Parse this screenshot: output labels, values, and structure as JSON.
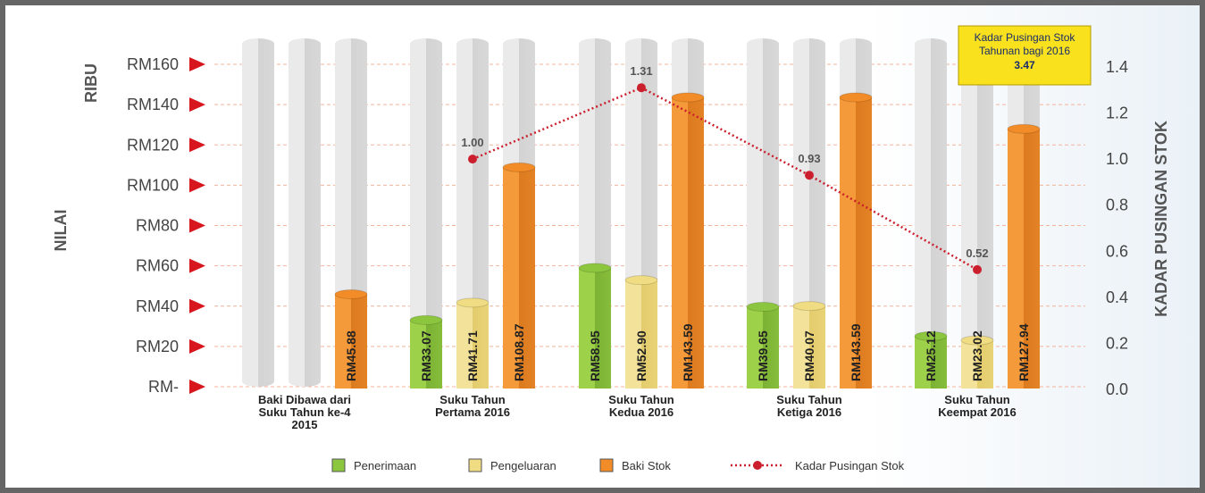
{
  "chart_data": {
    "type": "bar",
    "title": "",
    "categories": [
      [
        "Baki Dibawa dari",
        "Suku Tahun ke-4",
        "2015"
      ],
      [
        "Suku Tahun",
        "Pertama 2016"
      ],
      [
        "Suku Tahun",
        "Kedua 2016"
      ],
      [
        "Suku Tahun",
        "Ketiga 2016"
      ],
      [
        "Suku Tahun",
        "Keempat 2016"
      ]
    ],
    "ylabel": "NILAI",
    "yunit": "RIBU",
    "ylabel_right": "KADAR PUSINGAN STOK",
    "ylim": [
      0,
      160
    ],
    "yticks": [
      0,
      20,
      40,
      60,
      80,
      100,
      120,
      140,
      160
    ],
    "ytick_labels": [
      "RM-",
      "RM20",
      "RM40",
      "RM60",
      "RM80",
      "RM100",
      "RM120",
      "RM140",
      "RM160"
    ],
    "ylim_right": [
      0,
      1.4
    ],
    "yticks_right": [
      "0.0",
      "0.2",
      "0.4",
      "0.6",
      "0.8",
      "1.0",
      "1.2",
      "1.4"
    ],
    "series": [
      {
        "name": "Penerimaan",
        "color": "#8cc63f",
        "values": [
          null,
          33.07,
          58.95,
          39.65,
          25.12
        ],
        "labels": [
          null,
          "RM33.07",
          "RM58.95",
          "RM39.65",
          "RM25.12"
        ]
      },
      {
        "name": "Pengeluaran",
        "color": "#f0dc82",
        "values": [
          null,
          41.71,
          52.9,
          40.07,
          23.02
        ],
        "labels": [
          null,
          "RM41.71",
          "RM52.90",
          "RM40.07",
          "RM23.02"
        ]
      },
      {
        "name": "Baki Stok",
        "color": "#f28c28",
        "values": [
          45.88,
          108.87,
          143.59,
          143.59,
          127.94
        ],
        "labels": [
          "RM45.88",
          "RM108.87",
          "RM143.59",
          "RM143.59",
          "RM127.94"
        ]
      }
    ],
    "line_series": {
      "name": "Kadar Pusingan Stok",
      "color": "#cc1f2e",
      "values": [
        null,
        1.0,
        1.31,
        0.93,
        0.52
      ],
      "labels": [
        null,
        "1.00",
        "1.31",
        "0.93",
        "0.52"
      ]
    },
    "annotation": {
      "lines": [
        "Kadar Pusingan Stok",
        "Tahunan bagi 2016"
      ],
      "value": "3.47",
      "color": "#f9e11e"
    },
    "legend": "bottom",
    "grid": true
  }
}
